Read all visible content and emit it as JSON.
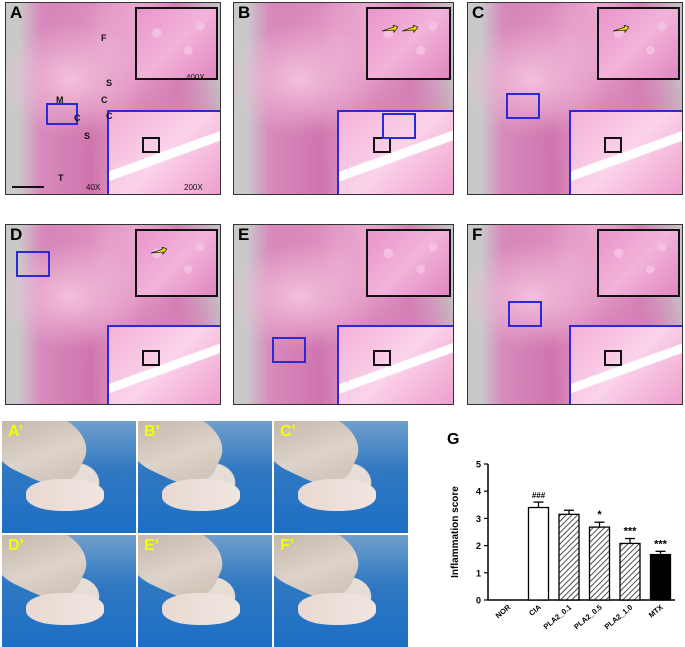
{
  "panels": [
    {
      "letter": "A",
      "mag_top": "400X",
      "mag_bottom": "200X",
      "mag_main": "40X",
      "labels": [
        "F",
        "S",
        "C",
        "M",
        "C",
        "S",
        "T",
        "C"
      ]
    },
    {
      "letter": "B"
    },
    {
      "letter": "C"
    },
    {
      "letter": "D"
    },
    {
      "letter": "E"
    },
    {
      "letter": "F"
    }
  ],
  "photos": [
    "A’",
    "B’",
    "C’",
    "D’",
    "E’",
    "F’"
  ],
  "chart_letter": "G",
  "chart_data": {
    "type": "bar",
    "ylabel": "Inflammation score",
    "ylim": [
      0,
      5
    ],
    "yticks": [
      "0",
      "1",
      "2",
      "3",
      "4",
      "5"
    ],
    "categories": [
      "NOR",
      "CIA",
      "PLA2_0.1",
      "PLA2_0.5",
      "PLA2_1.0",
      "MTX"
    ],
    "values": [
      0,
      3.4,
      3.15,
      2.68,
      2.08,
      1.67
    ],
    "errors": [
      0,
      0.2,
      0.15,
      0.18,
      0.18,
      0.12
    ],
    "annotations": [
      "",
      "###",
      "",
      "*",
      "***",
      "***"
    ],
    "styles": [
      "none",
      "white",
      "hatched",
      "hatched",
      "hatched",
      "black"
    ]
  },
  "colors": {
    "inset_blue": "#2a2ad6",
    "arrow": "#f5e400",
    "photo_label": "#f2ff00"
  }
}
